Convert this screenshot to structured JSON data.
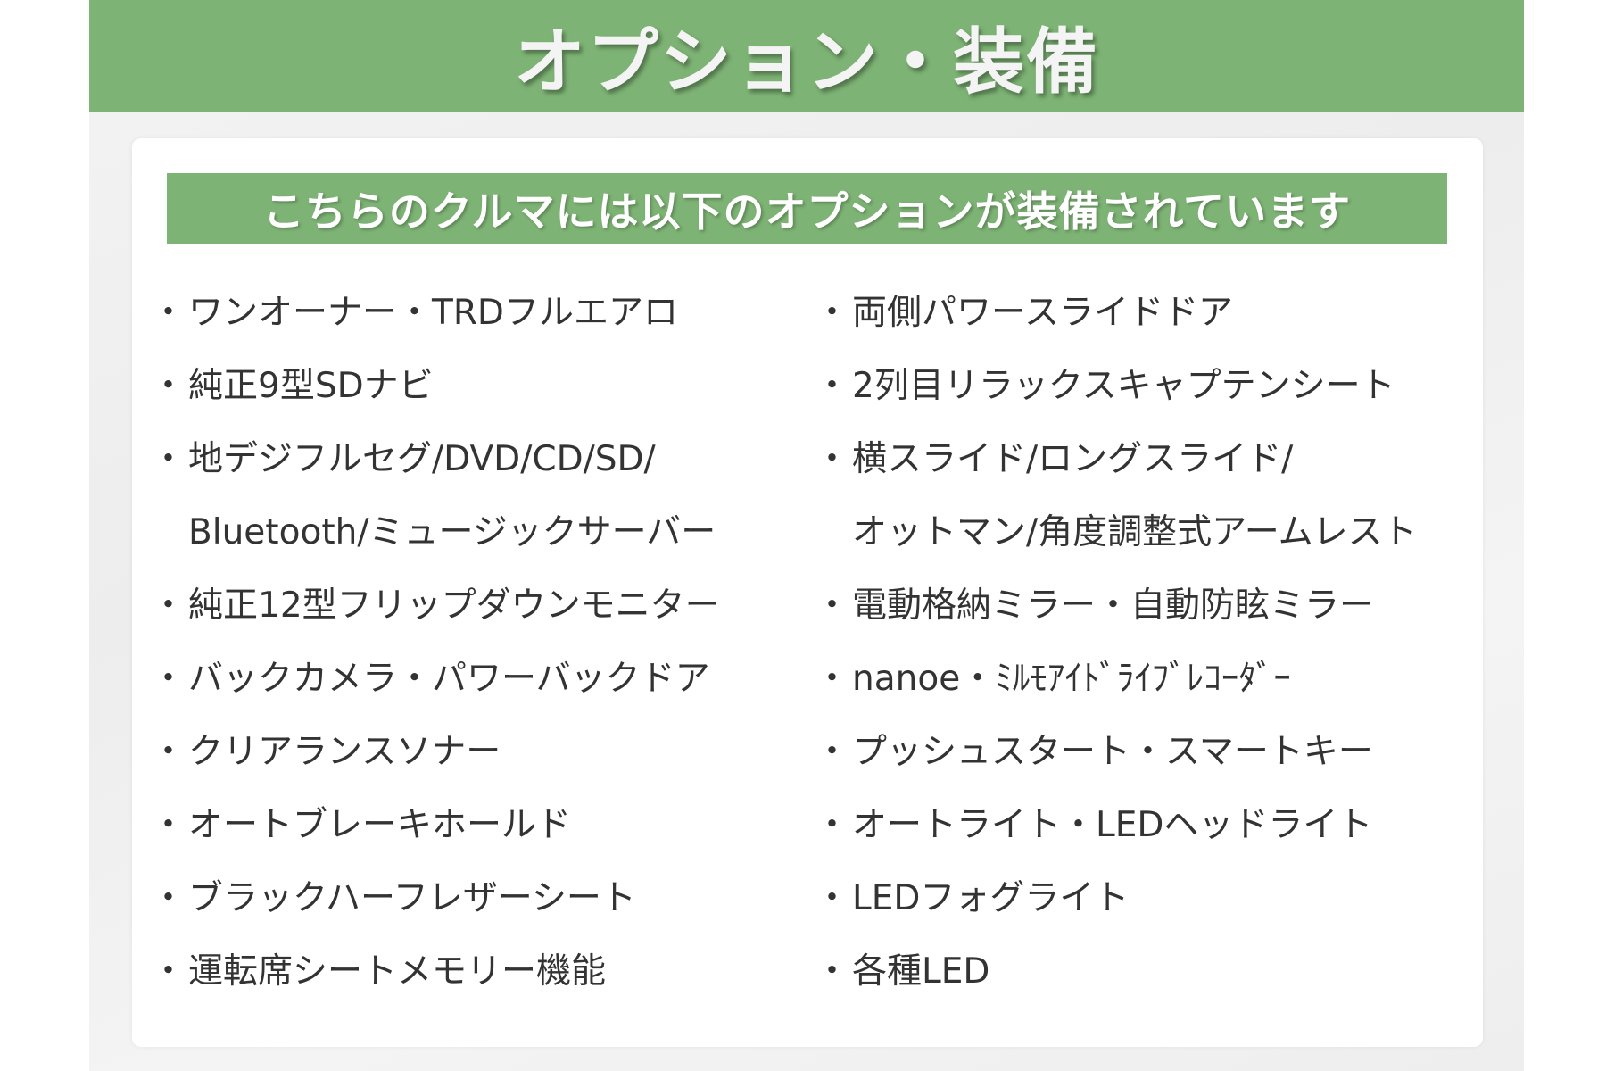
{
  "header": {
    "title": "オプション・装備"
  },
  "card": {
    "subtitle": "こちらのクルマには以下のオプションが装備されています",
    "bullet": "・",
    "left_items": [
      "ワンオーナー・TRDフルエアロ",
      "純正9型SDナビ",
      "地デジフルセグ/DVD/CD/SD/",
      "Bluetooth/ミュージックサーバー",
      "純正12型フリップダウンモニター",
      "バックカメラ・パワーバックドア",
      "クリアランスソナー",
      "オートブレーキホールド",
      "ブラックハーフレザーシート",
      "運転席シートメモリー機能"
    ],
    "right_items": [
      "両側パワースライドドア",
      "2列目リラックスキャプテンシート",
      "横スライド/ロングスライド/",
      "オットマン/角度調整式アームレスト",
      "電動格納ミラー・自動防眩ミラー",
      "nanoe・ﾐﾙﾓｱｲﾄﾞﾗｲﾌﾞﾚｺｰﾀﾞｰ",
      "プッシュスタート・スマートキー",
      "オートライト・LEDヘッドライト",
      "LEDフォグライト",
      "各種LED"
    ],
    "left_continuation_rows": [
      3
    ],
    "right_continuation_rows": [
      3
    ]
  },
  "colors": {
    "accent": "#7db374",
    "text": "#333333"
  }
}
